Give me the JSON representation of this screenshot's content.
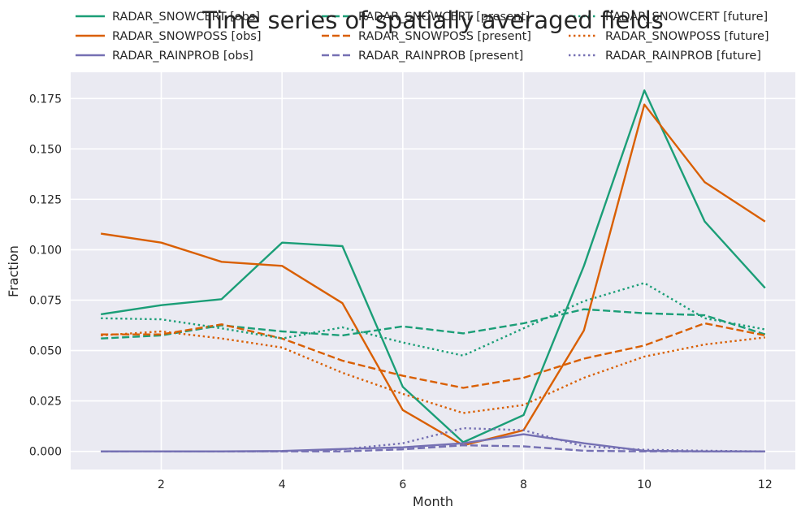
{
  "chart_data": {
    "type": "line",
    "title": "Time series of spatially averaged fields",
    "xlabel": "Month",
    "ylabel": "Fraction",
    "xlim": [
      0.5,
      12.5
    ],
    "ylim": [
      -0.009,
      0.188
    ],
    "xticks": [
      2,
      4,
      6,
      8,
      10,
      12
    ],
    "yticks": [
      0.0,
      0.025,
      0.05,
      0.075,
      0.1,
      0.125,
      0.15,
      0.175
    ],
    "ytick_labels": [
      "0.000",
      "0.025",
      "0.050",
      "0.075",
      "0.100",
      "0.125",
      "0.150",
      "0.175"
    ],
    "grid": true,
    "legend_position": "top",
    "x": [
      1,
      2,
      3,
      4,
      5,
      6,
      7,
      8,
      9,
      10,
      11,
      12
    ],
    "series": [
      {
        "name": "RADAR_SNOWCERT [obs]",
        "color": "#1b9e77",
        "dash": "solid",
        "values": [
          0.068,
          0.0725,
          0.0755,
          0.1035,
          0.1018,
          0.032,
          0.0045,
          0.018,
          0.092,
          0.179,
          0.114,
          0.081
        ]
      },
      {
        "name": "RADAR_SNOWPOSS [obs]",
        "color": "#d95f02",
        "dash": "solid",
        "values": [
          0.108,
          0.1035,
          0.094,
          0.092,
          0.0735,
          0.0205,
          0.003,
          0.0105,
          0.06,
          0.172,
          0.1335,
          0.114
        ]
      },
      {
        "name": "RADAR_RAINPROB [obs]",
        "color": "#7570b3",
        "dash": "solid",
        "values": [
          0.0,
          0.0,
          0.0,
          0.0002,
          0.0012,
          0.002,
          0.004,
          0.0085,
          0.004,
          0.0003,
          0.0,
          0.0
        ]
      },
      {
        "name": "RADAR_SNOWCERT [present]",
        "color": "#1b9e77",
        "dash": "dashed",
        "values": [
          0.056,
          0.0575,
          0.0625,
          0.0595,
          0.0575,
          0.062,
          0.0585,
          0.0635,
          0.0705,
          0.0685,
          0.0675,
          0.058
        ]
      },
      {
        "name": "RADAR_SNOWPOSS [present]",
        "color": "#d95f02",
        "dash": "dashed",
        "values": [
          0.058,
          0.058,
          0.063,
          0.056,
          0.045,
          0.0375,
          0.0315,
          0.0365,
          0.046,
          0.0525,
          0.0635,
          0.0575
        ]
      },
      {
        "name": "RADAR_RAINPROB [present]",
        "color": "#7570b3",
        "dash": "dashed",
        "values": [
          0.0,
          0.0,
          0.0,
          0.0,
          0.0,
          0.001,
          0.003,
          0.0025,
          0.0003,
          0.0,
          0.0,
          0.0
        ]
      },
      {
        "name": "RADAR_SNOWCERT [future]",
        "color": "#1b9e77",
        "dash": "dotted",
        "values": [
          0.066,
          0.0655,
          0.061,
          0.056,
          0.0615,
          0.054,
          0.0475,
          0.061,
          0.0745,
          0.0835,
          0.066,
          0.0605
        ]
      },
      {
        "name": "RADAR_SNOWPOSS [future]",
        "color": "#d95f02",
        "dash": "dotted",
        "values": [
          0.0575,
          0.0595,
          0.056,
          0.0515,
          0.039,
          0.0285,
          0.019,
          0.023,
          0.0365,
          0.047,
          0.053,
          0.0565
        ]
      },
      {
        "name": "RADAR_RAINPROB [future]",
        "color": "#7570b3",
        "dash": "dotted",
        "values": [
          0.0,
          0.0,
          0.0,
          0.0,
          0.001,
          0.004,
          0.0115,
          0.0105,
          0.0025,
          0.0008,
          0.0003,
          0.0
        ]
      }
    ]
  }
}
